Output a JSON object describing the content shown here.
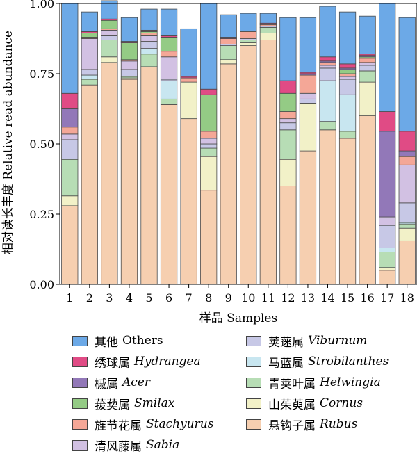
{
  "chart_data": {
    "type": "bar",
    "stacked": true,
    "xlabel": "样品 Samples",
    "ylabel": "相对读长丰度 Relative read abundance",
    "ylim": [
      0,
      1
    ],
    "yticks": [
      "0.00",
      "0.25",
      "0.50",
      "0.75",
      "1.00"
    ],
    "categories": [
      "1",
      "2",
      "3",
      "4",
      "5",
      "6",
      "7",
      "8",
      "9",
      "10",
      "11",
      "12",
      "13",
      "14",
      "15",
      "16",
      "17",
      "18"
    ],
    "grid": false,
    "legend_position": "bottom",
    "series": [
      {
        "key": "rubus",
        "name": "悬钩子属",
        "latin": "Rubus",
        "color": "#F6CFB0",
        "values": [
          0.28,
          0.71,
          0.79,
          0.73,
          0.775,
          0.64,
          0.59,
          0.335,
          0.785,
          0.85,
          0.87,
          0.35,
          0.475,
          0.55,
          0.52,
          0.6,
          0.05,
          0.155
        ]
      },
      {
        "key": "cornus",
        "name": "山茱萸属",
        "latin": "Cornus",
        "color": "#F2F1C8",
        "values": [
          0.035,
          0.0,
          0.02,
          0.005,
          0.0,
          0.0,
          0.13,
          0.12,
          0.015,
          0.01,
          0.025,
          0.095,
          0.17,
          0.0,
          0.0,
          0.12,
          0.01,
          0.045
        ]
      },
      {
        "key": "helwingia",
        "name": "青荚叶属",
        "latin": "Helwingia",
        "color": "#B7DDB5",
        "values": [
          0.13,
          0.02,
          0.06,
          0.005,
          0.045,
          0.02,
          0.0,
          0.03,
          0.05,
          0.01,
          0.02,
          0.105,
          0.0,
          0.03,
          0.025,
          0.04,
          0.055,
          0.015
        ]
      },
      {
        "key": "strobilanthes",
        "name": "马蓝属",
        "latin": "Strobilanthes",
        "color": "#C8E6F0",
        "values": [
          0.0,
          0.015,
          0.0,
          0.0,
          0.02,
          0.065,
          0.0,
          0.0,
          0.0,
          0.0,
          0.0,
          0.0,
          0.0,
          0.145,
          0.13,
          0.0,
          0.015,
          0.005
        ]
      },
      {
        "key": "viburnum",
        "name": "荚蒾属",
        "latin": "Viburnum",
        "color": "#C7C8E6",
        "values": [
          0.07,
          0.02,
          0.015,
          0.025,
          0.025,
          0.005,
          0.0,
          0.015,
          0.005,
          0.005,
          0.005,
          0.025,
          0.015,
          0.045,
          0.055,
          0.02,
          0.08,
          0.07
        ]
      },
      {
        "key": "sabia",
        "name": "清风藤属",
        "latin": "Sabia",
        "color": "#D2C1E3",
        "values": [
          0.02,
          0.11,
          0.02,
          0.03,
          0.02,
          0.08,
          0.0,
          0.02,
          0.0,
          0.0,
          0.0,
          0.015,
          0.02,
          0.01,
          0.01,
          0.01,
          0.03,
          0.135
        ]
      },
      {
        "key": "stachyurus",
        "name": "旌节花属",
        "latin": "Stachyurus",
        "color": "#F4A797",
        "values": [
          0.025,
          0.005,
          0.005,
          0.005,
          0.01,
          0.02,
          0.015,
          0.025,
          0.02,
          0.025,
          0.005,
          0.025,
          0.065,
          0.01,
          0.01,
          0.015,
          0.0,
          0.03
        ]
      },
      {
        "key": "smilax",
        "name": "菝葜属",
        "latin": "Smilax",
        "color": "#94CB85",
        "values": [
          0.0,
          0.015,
          0.03,
          0.06,
          0.005,
          0.05,
          0.0,
          0.13,
          0.0,
          0.0,
          0.0,
          0.065,
          0.0,
          0.0,
          0.015,
          0.005,
          0.0,
          0.0
        ]
      },
      {
        "key": "acer",
        "name": "槭属",
        "latin": "Acer",
        "color": "#9278B8",
        "values": [
          0.065,
          0.0,
          0.0,
          0.0,
          0.0,
          0.0,
          0.0,
          0.0,
          0.0,
          0.0,
          0.0,
          0.0,
          0.005,
          0.005,
          0.005,
          0.005,
          0.305,
          0.02
        ]
      },
      {
        "key": "hydrangea",
        "name": "绣球属",
        "latin": "Hydrangea",
        "color": "#E04B85",
        "values": [
          0.055,
          0.005,
          0.005,
          0.005,
          0.005,
          0.005,
          0.005,
          0.02,
          0.005,
          0.0,
          0.005,
          0.045,
          0.005,
          0.015,
          0.015,
          0.005,
          0.07,
          0.07
        ]
      },
      {
        "key": "others",
        "name": "其他",
        "latin": "Others",
        "color": "#6CA9E7",
        "values": [
          0.32,
          0.07,
          0.065,
          0.085,
          0.075,
          0.095,
          0.17,
          0.305,
          0.08,
          0.065,
          0.035,
          0.225,
          0.195,
          0.18,
          0.185,
          0.135,
          0.385,
          0.405
        ]
      }
    ],
    "legend_order": [
      "others",
      "viburnum",
      "hydrangea",
      "strobilanthes",
      "acer",
      "helwingia",
      "smilax",
      "cornus",
      "stachyurus",
      "rubus",
      "sabia"
    ]
  }
}
